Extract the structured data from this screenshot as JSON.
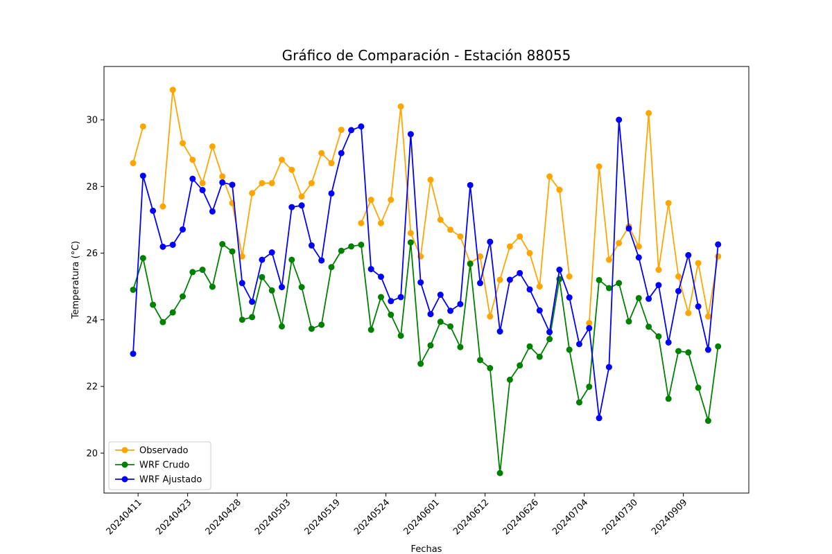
{
  "chart_data": {
    "type": "line",
    "title": "Gráfico de Comparación - Estación 88055",
    "xlabel": "Fechas",
    "ylabel": "Temperatura (°C)",
    "ylim": [
      18.8,
      31.6
    ],
    "yticks": [
      20,
      22,
      24,
      26,
      28,
      30
    ],
    "xtick_labels": [
      "20240411",
      "20240423",
      "20240428",
      "20240503",
      "20240519",
      "20240524",
      "20240601",
      "20240612",
      "20240626",
      "20240704",
      "20240730",
      "20240909"
    ],
    "xtick_positions": [
      0.5,
      5.5,
      10.5,
      15.5,
      20.5,
      25.5,
      30.5,
      35.5,
      40.5,
      45.5,
      50.5,
      55.5
    ],
    "grid": false,
    "legend_position": "lower-left",
    "series": [
      {
        "name": "Observado",
        "color": "#FFA500",
        "values": [
          28.7,
          29.8,
          null,
          27.4,
          30.9,
          29.3,
          28.8,
          28.1,
          29.2,
          28.3,
          27.5,
          25.9,
          27.8,
          28.1,
          28.1,
          28.8,
          28.5,
          27.7,
          28.1,
          29.0,
          28.7,
          29.7,
          null,
          26.9,
          27.6,
          26.9,
          27.6,
          30.4,
          26.6,
          25.9,
          28.2,
          27.0,
          26.7,
          26.5,
          25.7,
          25.9,
          24.1,
          25.2,
          26.2,
          26.5,
          26.0,
          25.0,
          28.3,
          27.9,
          25.3,
          null,
          23.9,
          28.6,
          25.8,
          26.3,
          26.8,
          26.2,
          30.2,
          25.5,
          27.5,
          25.3,
          24.2,
          25.7,
          24.1,
          25.9
        ]
      },
      {
        "name": "WRF Crudo",
        "color": "#008000",
        "values": [
          24.9,
          25.85,
          24.45,
          23.93,
          24.22,
          24.7,
          25.43,
          25.5,
          24.99,
          26.27,
          26.05,
          24.0,
          24.08,
          25.28,
          24.88,
          23.8,
          25.8,
          24.98,
          23.73,
          23.85,
          25.58,
          26.07,
          26.2,
          26.25,
          23.7,
          24.68,
          24.15,
          23.52,
          26.32,
          22.68,
          23.23,
          23.94,
          23.8,
          23.18,
          25.68,
          22.79,
          22.55,
          19.4,
          22.2,
          22.63,
          23.2,
          22.89,
          23.42,
          25.22,
          23.1,
          21.52,
          21.99,
          25.19,
          24.95,
          25.1,
          23.95,
          24.65,
          23.79,
          23.5,
          21.63,
          23.06,
          23.02,
          21.96,
          20.97,
          23.2
        ]
      },
      {
        "name": "WRF Ajustado",
        "color": "#0000FF",
        "values": [
          22.98,
          28.32,
          27.27,
          26.19,
          26.25,
          26.71,
          28.23,
          27.89,
          27.25,
          28.12,
          28.05,
          25.1,
          24.54,
          25.8,
          26.02,
          24.98,
          27.38,
          27.43,
          26.23,
          25.78,
          27.79,
          29.0,
          29.69,
          29.8,
          25.52,
          25.29,
          24.56,
          24.68,
          29.57,
          25.12,
          24.17,
          24.75,
          24.27,
          24.47,
          28.04,
          25.1,
          26.34,
          23.65,
          25.2,
          25.4,
          24.91,
          24.28,
          23.63,
          25.5,
          24.67,
          23.27,
          23.75,
          21.05,
          22.58,
          30.0,
          26.74,
          25.87,
          24.63,
          25.04,
          23.32,
          24.86,
          25.94,
          24.4,
          23.1,
          26.26
        ]
      }
    ]
  }
}
